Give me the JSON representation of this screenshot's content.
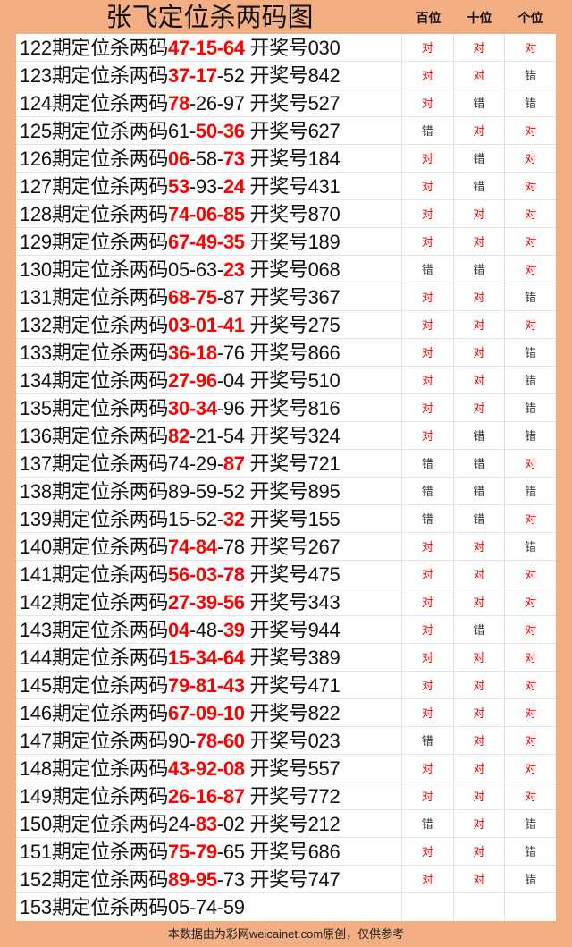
{
  "title": "张飞定位杀两码图",
  "columns": [
    "百位",
    "十位",
    "个位"
  ],
  "label": "期定位杀两码",
  "draw_label": "开奖号",
  "hit_text": "对",
  "miss_text": "错",
  "colors": {
    "background": "#F4AE84",
    "hit": "#ff0000"
  },
  "rows": [
    {
      "period": "122",
      "kills": [
        "47",
        "15",
        "64"
      ],
      "draw": "030",
      "results": [
        "对",
        "对",
        "对"
      ]
    },
    {
      "period": "123",
      "kills": [
        "37",
        "17",
        "52"
      ],
      "draw": "842",
      "results": [
        "对",
        "对",
        "错"
      ]
    },
    {
      "period": "124",
      "kills": [
        "78",
        "26",
        "97"
      ],
      "draw": "527",
      "results": [
        "对",
        "错",
        "错"
      ]
    },
    {
      "period": "125",
      "kills": [
        "61",
        "50",
        "36"
      ],
      "draw": "627",
      "results": [
        "错",
        "对",
        "对"
      ]
    },
    {
      "period": "126",
      "kills": [
        "06",
        "58",
        "73"
      ],
      "draw": "184",
      "results": [
        "对",
        "错",
        "对"
      ]
    },
    {
      "period": "127",
      "kills": [
        "53",
        "93",
        "24"
      ],
      "draw": "431",
      "results": [
        "对",
        "错",
        "对"
      ]
    },
    {
      "period": "128",
      "kills": [
        "74",
        "06",
        "85"
      ],
      "draw": "870",
      "results": [
        "对",
        "对",
        "对"
      ]
    },
    {
      "period": "129",
      "kills": [
        "67",
        "49",
        "35"
      ],
      "draw": "189",
      "results": [
        "对",
        "对",
        "对"
      ]
    },
    {
      "period": "130",
      "kills": [
        "05",
        "63",
        "23"
      ],
      "draw": "068",
      "results": [
        "错",
        "错",
        "对"
      ]
    },
    {
      "period": "131",
      "kills": [
        "68",
        "75",
        "87"
      ],
      "draw": "367",
      "results": [
        "对",
        "对",
        "错"
      ]
    },
    {
      "period": "132",
      "kills": [
        "03",
        "01",
        "41"
      ],
      "draw": "275",
      "results": [
        "对",
        "对",
        "对"
      ]
    },
    {
      "period": "133",
      "kills": [
        "36",
        "18",
        "76"
      ],
      "draw": "866",
      "results": [
        "对",
        "对",
        "错"
      ]
    },
    {
      "period": "134",
      "kills": [
        "27",
        "96",
        "04"
      ],
      "draw": "510",
      "results": [
        "对",
        "对",
        "错"
      ]
    },
    {
      "period": "135",
      "kills": [
        "30",
        "34",
        "96"
      ],
      "draw": "816",
      "results": [
        "对",
        "对",
        "错"
      ]
    },
    {
      "period": "136",
      "kills": [
        "82",
        "21",
        "54"
      ],
      "draw": "324",
      "results": [
        "对",
        "错",
        "错"
      ]
    },
    {
      "period": "137",
      "kills": [
        "74",
        "29",
        "87"
      ],
      "draw": "721",
      "results": [
        "错",
        "错",
        "对"
      ]
    },
    {
      "period": "138",
      "kills": [
        "89",
        "59",
        "52"
      ],
      "draw": "895",
      "results": [
        "错",
        "错",
        "错"
      ]
    },
    {
      "period": "139",
      "kills": [
        "15",
        "52",
        "32"
      ],
      "draw": "155",
      "results": [
        "错",
        "错",
        "对"
      ]
    },
    {
      "period": "140",
      "kills": [
        "74",
        "84",
        "78"
      ],
      "draw": "267",
      "results": [
        "对",
        "对",
        "错"
      ]
    },
    {
      "period": "141",
      "kills": [
        "56",
        "03",
        "78"
      ],
      "draw": "475",
      "results": [
        "对",
        "对",
        "对"
      ]
    },
    {
      "period": "142",
      "kills": [
        "27",
        "39",
        "56"
      ],
      "draw": "343",
      "results": [
        "对",
        "对",
        "对"
      ]
    },
    {
      "period": "143",
      "kills": [
        "04",
        "48",
        "39"
      ],
      "draw": "944",
      "results": [
        "对",
        "错",
        "对"
      ]
    },
    {
      "period": "144",
      "kills": [
        "15",
        "34",
        "64"
      ],
      "draw": "389",
      "results": [
        "对",
        "对",
        "对"
      ]
    },
    {
      "period": "145",
      "kills": [
        "79",
        "81",
        "43"
      ],
      "draw": "471",
      "results": [
        "对",
        "对",
        "对"
      ]
    },
    {
      "period": "146",
      "kills": [
        "67",
        "09",
        "10"
      ],
      "draw": "822",
      "results": [
        "对",
        "对",
        "对"
      ]
    },
    {
      "period": "147",
      "kills": [
        "90",
        "78",
        "60"
      ],
      "draw": "023",
      "results": [
        "错",
        "对",
        "对"
      ]
    },
    {
      "period": "148",
      "kills": [
        "43",
        "92",
        "08"
      ],
      "draw": "557",
      "results": [
        "对",
        "对",
        "对"
      ]
    },
    {
      "period": "149",
      "kills": [
        "26",
        "16",
        "87"
      ],
      "draw": "772",
      "results": [
        "对",
        "对",
        "对"
      ]
    },
    {
      "period": "150",
      "kills": [
        "24",
        "83",
        "02"
      ],
      "draw": "212",
      "results": [
        "错",
        "对",
        "错"
      ]
    },
    {
      "period": "151",
      "kills": [
        "75",
        "79",
        "65"
      ],
      "draw": "686",
      "results": [
        "对",
        "对",
        "错"
      ]
    },
    {
      "period": "152",
      "kills": [
        "89",
        "95",
        "73"
      ],
      "draw": "747",
      "results": [
        "对",
        "对",
        "错"
      ]
    },
    {
      "period": "153",
      "kills": [
        "05",
        "74",
        "59"
      ],
      "draw": null,
      "results": [
        "",
        "",
        ""
      ]
    }
  ],
  "footer": "本数据由为彩网weicainet.com原创，仅供参考"
}
